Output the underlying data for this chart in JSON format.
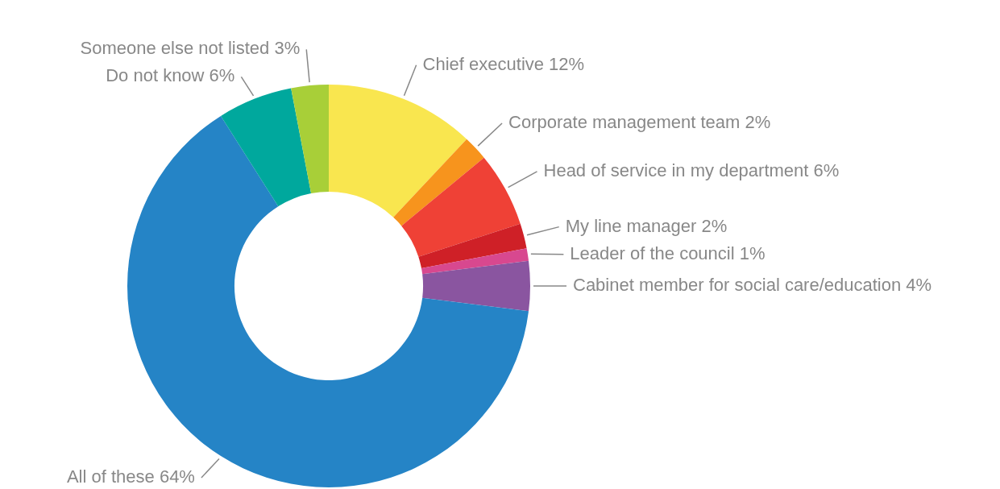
{
  "chart_data": {
    "type": "donut",
    "categories": [
      "Chief executive",
      "Corporate management team",
      "Head of service in my department",
      "My line manager",
      "Leader of the council",
      "Cabinet member for social care/education",
      "All of these",
      "Do not know",
      "Someone else not listed"
    ],
    "values": [
      12,
      2,
      6,
      2,
      1,
      4,
      64,
      6,
      3
    ],
    "value_labels": [
      "12%",
      "2%",
      "6%",
      "2%",
      "1%",
      "4%",
      "64%",
      "6%",
      "3%"
    ],
    "colors": [
      "#f9e64f",
      "#f7941d",
      "#ef4136",
      "#cf2027",
      "#d8488f",
      "#8a55a0",
      "#2584c6",
      "#00a89d",
      "#a8cf38"
    ]
  }
}
